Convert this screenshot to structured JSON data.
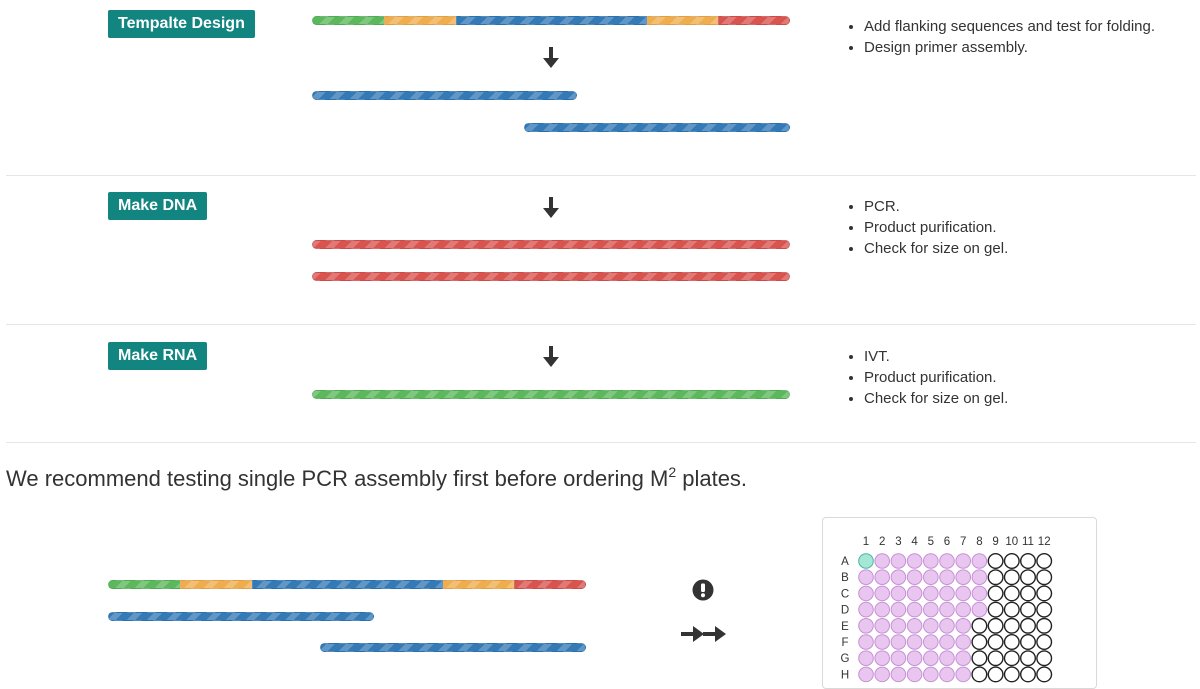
{
  "steps": [
    {
      "label": "Tempalte Design",
      "notes": [
        "Add flanking sequences and test for folding.",
        "Design primer assembly."
      ]
    },
    {
      "label": "Make DNA",
      "notes": [
        "PCR.",
        "Product purification.",
        "Check for size on gel."
      ]
    },
    {
      "label": "Make RNA",
      "notes": [
        "IVT.",
        "Product purification.",
        "Check for size on gel."
      ]
    }
  ],
  "recommendation": {
    "text": "We recommend testing single PCR assembly first before ordering M",
    "superscript": "2",
    "suffix": " plates."
  },
  "plate": {
    "columns": [
      "1",
      "2",
      "3",
      "4",
      "5",
      "6",
      "7",
      "8",
      "9",
      "10",
      "11",
      "12"
    ],
    "rows": [
      "A",
      "B",
      "C",
      "D",
      "E",
      "F",
      "G",
      "H"
    ],
    "highlight_well": "A1"
  },
  "icons": {
    "warning": "exclamation-circle-icon",
    "forward": "double-arrow-right-icon",
    "step_arrow": "arrow-down-icon"
  },
  "colors": {
    "badge": "#128580",
    "green": "#5cb85c",
    "orange": "#f0ad4e",
    "blue": "#337ab7",
    "red": "#d9534f",
    "well_filled": "#e8c6ef",
    "well_filled_stroke": "#c78fd6",
    "well_highlight": "#a6e6d6",
    "well_highlight_stroke": "#48b79d"
  }
}
